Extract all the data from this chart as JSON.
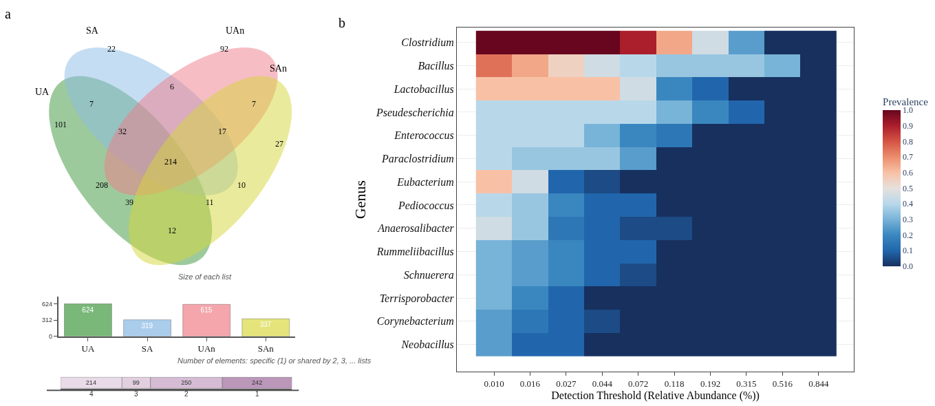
{
  "chart_data": [
    {
      "type": "other",
      "annotations": [
        "a",
        "UA",
        "SA",
        "UAn",
        "SAn",
        "22",
        "92",
        "101",
        "27",
        "7",
        "6",
        "7",
        "32",
        "17",
        "214",
        "208",
        "10",
        "39",
        "11",
        "12"
      ],
      "colors": [
        "#3c963c",
        "#8cbce6",
        "#f07c8a",
        "#d6d63a"
      ]
    },
    {
      "type": "bar",
      "title": "Size of each list",
      "categories": [
        "UA",
        "SA",
        "UAn",
        "SAn"
      ],
      "values": [
        624,
        319,
        615,
        337
      ],
      "colors": [
        "#7ab87a",
        "#aacdec",
        "#f4a6ac",
        "#e4e47a"
      ],
      "ylim": [
        0,
        760
      ],
      "yticks": [
        0,
        312,
        624
      ],
      "data_labels": true
    },
    {
      "type": "bar",
      "title": "Number of elements: specific (1) or shared by 2, 3, ... lists",
      "orientation": "horizontal",
      "stacked": true,
      "categories": [
        null
      ],
      "xlim": [
        0,
        805
      ],
      "data_labels": true,
      "series": [
        {
          "name": "4",
          "color": "#e9dbe8",
          "values": [
            214
          ]
        },
        {
          "name": "3",
          "color": "#e2d0e0",
          "values": [
            99
          ]
        },
        {
          "name": "2",
          "color": "#d5bcd4",
          "values": [
            250
          ]
        },
        {
          "name": "1",
          "color": "#bb97ba",
          "values": [
            242
          ]
        }
      ]
    },
    {
      "type": "heatmap",
      "annotations": [
        "b"
      ],
      "xlabel": "Detection Threshold (Relative Abundance (%))",
      "ylabel": "Genus",
      "clabel": "Prevalence",
      "grid": "y",
      "categories": [
        "0.010",
        "0.016",
        "0.027",
        "0.044",
        "0.072",
        "0.118",
        "0.192",
        "0.315",
        "0.516",
        "0.844"
      ],
      "y_categories": [
        "Clostridium",
        "Bacillus",
        "Lactobacillus",
        "Pseudescherichia",
        "Enterococcus",
        "Paraclostridium",
        "Eubacterium",
        "Pediococcus",
        "Anaerosalibacter",
        "Rummeliibacillus",
        "Schnuerera",
        "Terrisporobacter",
        "Corynebacterium",
        "Neobacillus"
      ],
      "cells": [
        [
          1,
          1,
          1,
          1,
          0.9,
          0.65,
          0.45,
          0.25,
          0,
          0
        ],
        [
          0.75,
          0.65,
          0.55,
          0.45,
          0.4,
          0.35,
          0.35,
          0.35,
          0.3,
          0
        ],
        [
          0.6,
          0.6,
          0.6,
          0.6,
          0.45,
          0.2,
          0.1,
          0,
          0,
          0
        ],
        [
          0.4,
          0.4,
          0.4,
          0.4,
          0.4,
          0.3,
          0.2,
          0.1,
          0,
          0
        ],
        [
          0.4,
          0.4,
          0.4,
          0.3,
          0.2,
          0.15,
          0,
          0,
          0,
          0
        ],
        [
          0.4,
          0.35,
          0.35,
          0.35,
          0.25,
          0,
          0,
          0,
          0,
          0
        ],
        [
          0.6,
          0.45,
          0.1,
          0.05,
          0,
          0,
          0,
          0,
          0,
          0
        ],
        [
          0.4,
          0.35,
          0.2,
          0.1,
          0.1,
          0,
          0,
          0,
          0,
          0
        ],
        [
          0.45,
          0.35,
          0.15,
          0.1,
          0.05,
          0.05,
          0,
          0,
          0,
          0
        ],
        [
          0.3,
          0.25,
          0.2,
          0.1,
          0.1,
          0,
          0,
          0,
          0,
          0
        ],
        [
          0.3,
          0.25,
          0.2,
          0.1,
          0.05,
          0,
          0,
          0,
          0,
          0
        ],
        [
          0.3,
          0.2,
          0.1,
          0,
          0,
          0,
          0,
          0,
          0,
          0
        ],
        [
          0.25,
          0.15,
          0.1,
          0.05,
          0,
          0,
          0,
          0,
          0,
          0
        ],
        [
          0.25,
          0.1,
          0.1,
          0,
          0,
          0,
          0,
          0,
          0,
          0
        ]
      ],
      "clim": [
        0,
        1
      ],
      "cticks": [
        {
          "value": 0,
          "label": "0.0"
        },
        {
          "value": 0.1,
          "label": "0.1"
        },
        {
          "value": 0.2,
          "label": "0.2"
        },
        {
          "value": 0.3,
          "label": "0.3"
        },
        {
          "value": 0.4,
          "label": "0.4"
        },
        {
          "value": 0.5,
          "label": "0.5"
        },
        {
          "value": 0.6,
          "label": "0.6"
        },
        {
          "value": 0.7,
          "label": "0.7"
        },
        {
          "value": 0.8,
          "label": "0.8"
        },
        {
          "value": 0.9,
          "label": "0.9"
        },
        {
          "value": 1,
          "label": "1.0"
        }
      ]
    }
  ]
}
